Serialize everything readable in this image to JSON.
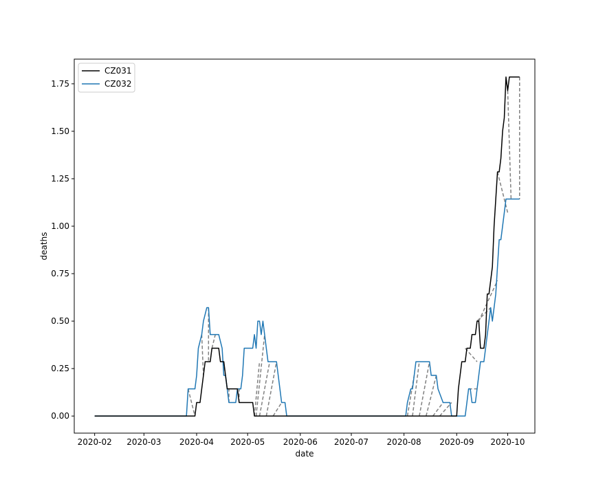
{
  "chart_data": {
    "type": "line",
    "xlabel": "date",
    "ylabel": "deaths",
    "x_ticks": [
      "2020-02",
      "2020-03",
      "2020-04",
      "2020-05",
      "2020-06",
      "2020-07",
      "2020-08",
      "2020-09",
      "2020-10"
    ],
    "y_ticks": [
      "0.00",
      "0.25",
      "0.50",
      "0.75",
      "1.00",
      "1.25",
      "1.50",
      "1.75"
    ],
    "xlim": [
      "2020-01-20",
      "2020-10-17"
    ],
    "ylim": [
      -0.09,
      1.88
    ],
    "legend": "top-left",
    "grid": false,
    "series": [
      {
        "name": "CZ031",
        "color": "#000000",
        "points": [
          [
            "2020-02-01",
            0
          ],
          [
            "2020-03-31",
            0
          ],
          [
            "2020-04-01",
            0.071
          ],
          [
            "2020-04-03",
            0.071
          ],
          [
            "2020-04-04",
            0.143
          ],
          [
            "2020-04-05",
            0.214
          ],
          [
            "2020-04-06",
            0.286
          ],
          [
            "2020-04-09",
            0.286
          ],
          [
            "2020-04-10",
            0.357
          ],
          [
            "2020-04-14",
            0.357
          ],
          [
            "2020-04-15",
            0.286
          ],
          [
            "2020-04-17",
            0.286
          ],
          [
            "2020-04-18",
            0.214
          ],
          [
            "2020-04-19",
            0.143
          ],
          [
            "2020-04-25",
            0.143
          ],
          [
            "2020-04-26",
            0.071
          ],
          [
            "2020-05-04",
            0.071
          ],
          [
            "2020-05-05",
            0
          ],
          [
            "2020-09-01",
            0
          ],
          [
            "2020-09-02",
            0.143
          ],
          [
            "2020-09-04",
            0.286
          ],
          [
            "2020-09-06",
            0.286
          ],
          [
            "2020-09-07",
            0.357
          ],
          [
            "2020-09-09",
            0.357
          ],
          [
            "2020-09-10",
            0.429
          ],
          [
            "2020-09-12",
            0.429
          ],
          [
            "2020-09-13",
            0.5
          ],
          [
            "2020-09-14",
            0.5
          ],
          [
            "2020-09-15",
            0.357
          ],
          [
            "2020-09-17",
            0.357
          ],
          [
            "2020-09-18",
            0.429
          ],
          [
            "2020-09-19",
            0.643
          ],
          [
            "2020-09-20",
            0.643
          ],
          [
            "2020-09-21",
            0.714
          ],
          [
            "2020-09-22",
            0.786
          ],
          [
            "2020-09-23",
            1.0
          ],
          [
            "2020-09-25",
            1.286
          ],
          [
            "2020-09-26",
            1.286
          ],
          [
            "2020-09-27",
            1.357
          ],
          [
            "2020-09-28",
            1.5
          ],
          [
            "2020-09-29",
            1.571
          ],
          [
            "2020-09-30",
            1.786
          ],
          [
            "2020-10-01",
            1.714
          ],
          [
            "2020-10-02",
            1.786
          ],
          [
            "2020-10-08",
            1.786
          ]
        ]
      },
      {
        "name": "CZ032",
        "color": "#1f77b4",
        "points": [
          [
            "2020-02-01",
            0
          ],
          [
            "2020-03-26",
            0
          ],
          [
            "2020-03-27",
            0.143
          ],
          [
            "2020-03-31",
            0.143
          ],
          [
            "2020-04-01",
            0.214
          ],
          [
            "2020-04-02",
            0.357
          ],
          [
            "2020-04-04",
            0.429
          ],
          [
            "2020-04-05",
            0.5
          ],
          [
            "2020-04-07",
            0.571
          ],
          [
            "2020-04-08",
            0.571
          ],
          [
            "2020-04-09",
            0.429
          ],
          [
            "2020-04-14",
            0.429
          ],
          [
            "2020-04-16",
            0.357
          ],
          [
            "2020-04-17",
            0.214
          ],
          [
            "2020-04-18",
            0.214
          ],
          [
            "2020-04-19",
            0.143
          ],
          [
            "2020-04-20",
            0.071
          ],
          [
            "2020-04-24",
            0.071
          ],
          [
            "2020-04-25",
            0.143
          ],
          [
            "2020-04-27",
            0.143
          ],
          [
            "2020-04-28",
            0.214
          ],
          [
            "2020-04-29",
            0.357
          ],
          [
            "2020-05-04",
            0.357
          ],
          [
            "2020-05-05",
            0.429
          ],
          [
            "2020-05-06",
            0.357
          ],
          [
            "2020-05-07",
            0.5
          ],
          [
            "2020-05-08",
            0.5
          ],
          [
            "2020-05-09",
            0.429
          ],
          [
            "2020-05-10",
            0.5
          ],
          [
            "2020-05-11",
            0.429
          ],
          [
            "2020-05-12",
            0.357
          ],
          [
            "2020-05-13",
            0.286
          ],
          [
            "2020-05-18",
            0.286
          ],
          [
            "2020-05-19",
            0.214
          ],
          [
            "2020-05-20",
            0.143
          ],
          [
            "2020-05-21",
            0.071
          ],
          [
            "2020-05-23",
            0.071
          ],
          [
            "2020-05-24",
            0
          ],
          [
            "2020-08-02",
            0
          ],
          [
            "2020-08-03",
            0.071
          ],
          [
            "2020-08-05",
            0.143
          ],
          [
            "2020-08-06",
            0.143
          ],
          [
            "2020-08-07",
            0.214
          ],
          [
            "2020-08-08",
            0.286
          ],
          [
            "2020-08-16",
            0.286
          ],
          [
            "2020-08-17",
            0.214
          ],
          [
            "2020-08-20",
            0.214
          ],
          [
            "2020-08-21",
            0.143
          ],
          [
            "2020-08-24",
            0.071
          ],
          [
            "2020-08-28",
            0.071
          ],
          [
            "2020-08-29",
            0
          ],
          [
            "2020-09-06",
            0
          ],
          [
            "2020-09-07",
            0.071
          ],
          [
            "2020-09-08",
            0.143
          ],
          [
            "2020-09-09",
            0.143
          ],
          [
            "2020-09-10",
            0.071
          ],
          [
            "2020-09-12",
            0.071
          ],
          [
            "2020-09-13",
            0.143
          ],
          [
            "2020-09-14",
            0.214
          ],
          [
            "2020-09-15",
            0.286
          ],
          [
            "2020-09-17",
            0.286
          ],
          [
            "2020-09-18",
            0.357
          ],
          [
            "2020-09-19",
            0.429
          ],
          [
            "2020-09-20",
            0.5
          ],
          [
            "2020-09-21",
            0.571
          ],
          [
            "2020-09-22",
            0.5
          ],
          [
            "2020-09-23",
            0.571
          ],
          [
            "2020-09-24",
            0.643
          ],
          [
            "2020-09-25",
            0.786
          ],
          [
            "2020-09-26",
            0.929
          ],
          [
            "2020-09-27",
            0.929
          ],
          [
            "2020-09-28",
            1.0
          ],
          [
            "2020-09-29",
            1.071
          ],
          [
            "2020-09-30",
            1.143
          ],
          [
            "2020-10-08",
            1.143
          ]
        ]
      }
    ],
    "connector_lines": {
      "color": "#808080",
      "style": "dashed",
      "segments": [
        [
          [
            "2020-03-27",
            0.143
          ],
          [
            "2020-03-31",
            0
          ]
        ],
        [
          [
            "2020-04-04",
            0.429
          ],
          [
            "2020-04-05",
            0.214
          ]
        ],
        [
          [
            "2020-04-08",
            0.571
          ],
          [
            "2020-04-08",
            0.286
          ]
        ],
        [
          [
            "2020-04-10",
            0.357
          ],
          [
            "2020-04-12",
            0.429
          ]
        ],
        [
          [
            "2020-04-17",
            0.286
          ],
          [
            "2020-04-17",
            0.214
          ]
        ],
        [
          [
            "2020-04-20",
            0.071
          ],
          [
            "2020-04-20",
            0.143
          ]
        ],
        [
          [
            "2020-04-26",
            0.071
          ],
          [
            "2020-04-26",
            0.143
          ]
        ],
        [
          [
            "2020-05-05",
            0
          ],
          [
            "2020-05-08",
            0.286
          ]
        ],
        [
          [
            "2020-05-06",
            0
          ],
          [
            "2020-05-11",
            0.429
          ]
        ],
        [
          [
            "2020-05-08",
            0
          ],
          [
            "2020-05-14",
            0.286
          ]
        ],
        [
          [
            "2020-05-12",
            0
          ],
          [
            "2020-05-18",
            0.286
          ]
        ],
        [
          [
            "2020-05-16",
            0
          ],
          [
            "2020-05-21",
            0.071
          ]
        ],
        [
          [
            "2020-08-03",
            0
          ],
          [
            "2020-08-07",
            0.214
          ]
        ],
        [
          [
            "2020-08-06",
            0
          ],
          [
            "2020-08-10",
            0.286
          ]
        ],
        [
          [
            "2020-08-10",
            0
          ],
          [
            "2020-08-16",
            0.286
          ]
        ],
        [
          [
            "2020-08-14",
            0
          ],
          [
            "2020-08-20",
            0.214
          ]
        ],
        [
          [
            "2020-08-18",
            0
          ],
          [
            "2020-08-24",
            0.071
          ]
        ],
        [
          [
            "2020-08-22",
            0
          ],
          [
            "2020-08-29",
            0.071
          ]
        ],
        [
          [
            "2020-09-06",
            0.357
          ],
          [
            "2020-09-13",
            0.286
          ]
        ],
        [
          [
            "2020-09-08",
            0.143
          ],
          [
            "2020-09-14",
            0.143
          ]
        ],
        [
          [
            "2020-09-13",
            0.5
          ],
          [
            "2020-09-21",
            0.571
          ]
        ],
        [
          [
            "2020-09-14",
            0.5
          ],
          [
            "2020-09-25",
            0.714
          ]
        ],
        [
          [
            "2020-09-25",
            1.286
          ],
          [
            "2020-10-01",
            1.071
          ]
        ],
        [
          [
            "2020-10-01",
            1.714
          ],
          [
            "2020-10-03",
            1.143
          ]
        ],
        [
          [
            "2020-10-08",
            1.786
          ],
          [
            "2020-10-08",
            1.143
          ]
        ]
      ]
    }
  }
}
